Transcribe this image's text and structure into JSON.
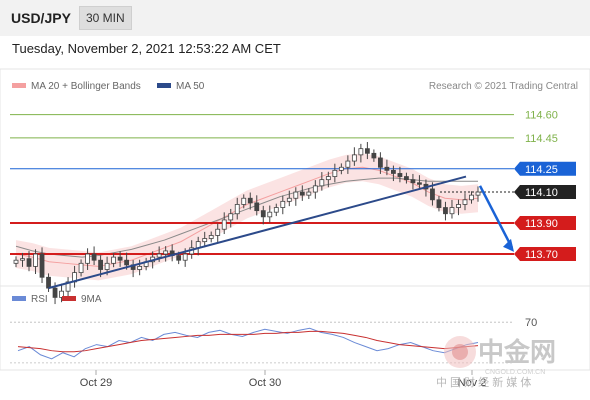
{
  "header": {
    "symbol": "USD/JPY",
    "timeframe": "30 MIN",
    "datetime": "Tuesday, November 2, 2021 12:53:22 AM CET"
  },
  "legend": {
    "ma20_bb": "MA 20 + Bollinger Bands",
    "ma50": "MA 50",
    "rsi": "RSI",
    "rsi_ma": "9MA"
  },
  "research_credit": "Research © 2021 Trading Central",
  "watermark": {
    "title": "中金网",
    "domain": "CNGOLD.COM.CN",
    "tagline": "中 国 财 经 新 媒 体"
  },
  "colors": {
    "bull": "#444444",
    "bear": "#444444",
    "ma20": "#f4a0a0",
    "bb_fill": "#fbe0e0",
    "ma50": "#8a8a8a",
    "trendline": "#2c4a8a",
    "support": "#d41c1c",
    "resistance_blue": "#1a63d6",
    "target_green": "#7fb24a",
    "rsi": "#6a8ad6",
    "rsi_ma": "#c83030"
  },
  "chart_data": [
    {
      "type": "candlestick",
      "title": "",
      "x_tick_labels": [
        "Oct 29",
        "Oct 30",
        "Nov 2"
      ],
      "ylim": [
        113.5,
        114.72
      ],
      "levels": [
        {
          "value": 114.6,
          "label": "114.60",
          "kind": "target",
          "color": "#7fb24a"
        },
        {
          "value": 114.45,
          "label": "114.45",
          "kind": "target",
          "color": "#7fb24a"
        },
        {
          "value": 114.25,
          "label": "114.25",
          "kind": "resistance",
          "color": "#1a63d6"
        },
        {
          "value": 114.1,
          "label": "114.10",
          "kind": "current",
          "color": "#222222"
        },
        {
          "value": 113.9,
          "label": "113.90",
          "kind": "support",
          "color": "#d41c1c"
        },
        {
          "value": 113.7,
          "label": "113.70",
          "kind": "support",
          "color": "#d41c1c"
        }
      ],
      "price_path": [
        113.66,
        113.67,
        113.62,
        113.7,
        113.55,
        113.48,
        113.42,
        113.46,
        113.52,
        113.58,
        113.64,
        113.7,
        113.66,
        113.6,
        113.64,
        113.68,
        113.66,
        113.63,
        113.6,
        113.62,
        113.65,
        113.68,
        113.7,
        113.72,
        113.69,
        113.66,
        113.7,
        113.74,
        113.78,
        113.8,
        113.82,
        113.86,
        113.92,
        113.96,
        114.02,
        114.06,
        114.03,
        113.98,
        113.94,
        113.97,
        114.0,
        114.04,
        114.06,
        114.1,
        114.08,
        114.1,
        114.14,
        114.18,
        114.2,
        114.24,
        114.26,
        114.3,
        114.34,
        114.38,
        114.35,
        114.32,
        114.26,
        114.24,
        114.22,
        114.2,
        114.18,
        114.16,
        114.15,
        114.12,
        114.05,
        114.0,
        113.96,
        114.0,
        114.02,
        114.05,
        114.08,
        114.1
      ],
      "ma20": [
        113.7,
        113.68,
        113.65,
        113.64,
        113.63,
        113.62,
        113.64,
        113.66,
        113.7,
        113.74,
        113.78,
        113.84,
        113.9,
        113.96,
        114.02,
        114.06,
        114.1,
        114.14,
        114.18,
        114.22,
        114.25,
        114.26,
        114.24,
        114.2,
        114.16,
        114.1,
        114.06,
        114.05,
        114.06
      ],
      "ma50": [
        113.75,
        113.72,
        113.7,
        113.69,
        113.68,
        113.69,
        113.71,
        113.73,
        113.76,
        113.79,
        113.83,
        113.87,
        113.91,
        113.95,
        113.99,
        114.03,
        114.07,
        114.1,
        114.13,
        114.15,
        114.17,
        114.18,
        114.19,
        114.19,
        114.18,
        114.17,
        114.17,
        114.17,
        114.17
      ]
    },
    {
      "type": "line",
      "title": "",
      "series_labels": [
        "RSI",
        "9MA"
      ],
      "ylim": [
        25,
        80
      ],
      "reference_levels": [
        70,
        30
      ],
      "rsi": [
        42,
        46,
        38,
        34,
        40,
        36,
        44,
        48,
        46,
        52,
        50,
        55,
        52,
        58,
        60,
        57,
        55,
        60,
        62,
        58,
        56,
        60,
        63,
        61,
        59,
        62,
        64,
        60,
        58,
        55,
        50,
        46,
        42,
        44,
        48,
        50,
        46,
        42,
        40,
        44,
        48,
        50
      ],
      "rsi_ma": [
        46,
        45,
        44,
        42,
        41,
        41,
        42,
        44,
        46,
        48,
        50,
        52,
        53,
        54,
        55,
        56,
        57,
        57,
        58,
        58,
        58,
        58,
        59,
        59,
        60,
        60,
        61,
        61,
        60,
        59,
        57,
        55,
        52,
        50,
        48,
        47,
        46,
        45,
        44,
        45,
        46,
        47
      ]
    }
  ]
}
